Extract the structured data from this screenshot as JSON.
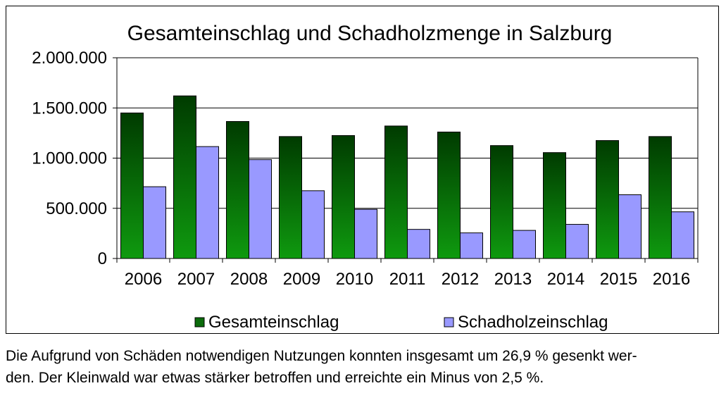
{
  "chart_data": {
    "type": "bar",
    "title": "Gesamteinschlag und Schadholzmenge in Salzburg",
    "categories": [
      "2006",
      "2007",
      "2008",
      "2009",
      "2010",
      "2011",
      "2012",
      "2013",
      "2014",
      "2015",
      "2016"
    ],
    "series": [
      {
        "name": "Gesamteinschlag",
        "values": [
          1450000,
          1620000,
          1365000,
          1215000,
          1225000,
          1320000,
          1260000,
          1125000,
          1055000,
          1175000,
          1215000
        ],
        "color": "#0b6b0b"
      },
      {
        "name": "Schadholzeinschlag",
        "values": [
          715000,
          1115000,
          985000,
          675000,
          490000,
          290000,
          255000,
          280000,
          340000,
          635000,
          465000
        ],
        "color": "#9999ff"
      }
    ],
    "ylim": [
      0,
      2000000
    ],
    "yticks": [
      0,
      500000,
      1000000,
      1500000,
      2000000
    ],
    "ytick_labels": [
      "0",
      "500.000",
      "1.000.000",
      "1.500.000",
      "2.000.000"
    ],
    "xlabel": "",
    "ylabel": "",
    "grid": true,
    "legend": "bottom"
  },
  "caption": {
    "line1": "Die Aufgrund von Schäden notwendigen Nutzungen konnten insgesamt um 26,9 % gesenkt wer-",
    "line2": "den. Der Kleinwald war etwas stärker betroffen und erreichte ein Minus von 2,5 %."
  }
}
